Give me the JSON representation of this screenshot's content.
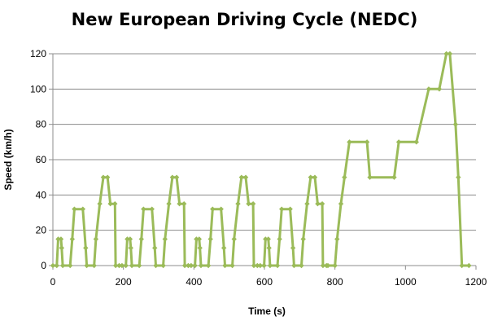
{
  "chart_data": {
    "type": "line",
    "title": "New European Driving Cycle (NEDC)",
    "xlabel": "Time (s)",
    "ylabel": "Speed (km/h)",
    "xlim": [
      0,
      1200
    ],
    "ylim": [
      0,
      120
    ],
    "x_ticks": [
      "0",
      "200",
      "400",
      "600",
      "800",
      "1000",
      "1200"
    ],
    "y_ticks": [
      "0",
      "20",
      "40",
      "60",
      "80",
      "100",
      "120"
    ],
    "grid": "horizontal",
    "legend": "none",
    "series_color": "#9BBB59",
    "series": [
      {
        "points": [
          [
            0,
            0
          ],
          [
            11,
            0
          ],
          [
            15,
            15
          ],
          [
            23,
            15
          ],
          [
            25,
            10
          ],
          [
            28,
            0
          ],
          [
            49,
            0
          ],
          [
            55,
            15
          ],
          [
            61,
            32
          ],
          [
            85,
            32
          ],
          [
            93,
            10
          ],
          [
            96,
            0
          ],
          [
            117,
            0
          ],
          [
            122,
            15
          ],
          [
            133,
            35
          ],
          [
            143,
            50
          ],
          [
            155,
            50
          ],
          [
            163,
            35
          ],
          [
            176,
            35
          ],
          [
            178,
            0
          ],
          [
            188,
            0
          ],
          [
            196,
            0
          ],
          [
            207,
            0
          ],
          [
            211,
            15
          ],
          [
            219,
            15
          ],
          [
            221,
            10
          ],
          [
            224,
            0
          ],
          [
            245,
            0
          ],
          [
            251,
            15
          ],
          [
            257,
            32
          ],
          [
            281,
            32
          ],
          [
            289,
            10
          ],
          [
            292,
            0
          ],
          [
            313,
            0
          ],
          [
            318,
            15
          ],
          [
            329,
            35
          ],
          [
            339,
            50
          ],
          [
            351,
            50
          ],
          [
            359,
            35
          ],
          [
            372,
            35
          ],
          [
            374,
            0
          ],
          [
            384,
            0
          ],
          [
            392,
            0
          ],
          [
            403,
            0
          ],
          [
            407,
            15
          ],
          [
            415,
            15
          ],
          [
            417,
            10
          ],
          [
            420,
            0
          ],
          [
            441,
            0
          ],
          [
            447,
            15
          ],
          [
            453,
            32
          ],
          [
            477,
            32
          ],
          [
            485,
            10
          ],
          [
            488,
            0
          ],
          [
            509,
            0
          ],
          [
            514,
            15
          ],
          [
            525,
            35
          ],
          [
            535,
            50
          ],
          [
            547,
            50
          ],
          [
            555,
            35
          ],
          [
            568,
            35
          ],
          [
            570,
            0
          ],
          [
            580,
            0
          ],
          [
            588,
            0
          ],
          [
            599,
            0
          ],
          [
            603,
            15
          ],
          [
            611,
            15
          ],
          [
            613,
            10
          ],
          [
            616,
            0
          ],
          [
            637,
            0
          ],
          [
            643,
            15
          ],
          [
            649,
            32
          ],
          [
            673,
            32
          ],
          [
            681,
            10
          ],
          [
            684,
            0
          ],
          [
            705,
            0
          ],
          [
            710,
            15
          ],
          [
            721,
            35
          ],
          [
            731,
            50
          ],
          [
            743,
            50
          ],
          [
            751,
            35
          ],
          [
            764,
            35
          ],
          [
            766,
            0
          ],
          [
            776,
            0
          ],
          [
            780,
            0
          ],
          [
            800,
            0
          ],
          [
            806,
            15
          ],
          [
            817,
            35
          ],
          [
            827,
            50
          ],
          [
            841,
            70
          ],
          [
            891,
            70
          ],
          [
            899,
            50
          ],
          [
            968,
            50
          ],
          [
            981,
            70
          ],
          [
            1031,
            70
          ],
          [
            1066,
            100
          ],
          [
            1096,
            100
          ],
          [
            1116,
            120
          ],
          [
            1126,
            120
          ],
          [
            1142,
            80
          ],
          [
            1150,
            50
          ],
          [
            1160,
            0
          ],
          [
            1180,
            0
          ]
        ]
      }
    ]
  }
}
